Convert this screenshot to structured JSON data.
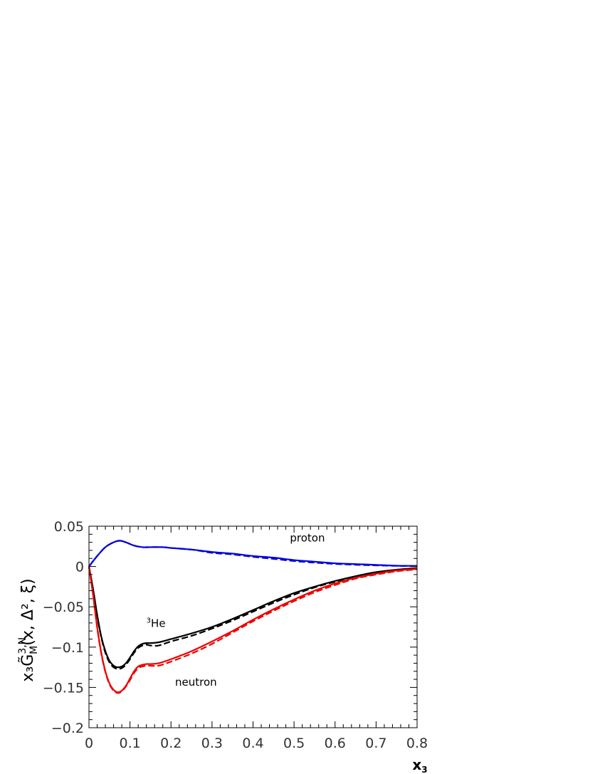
{
  "chart_data": {
    "type": "line",
    "title": "",
    "xlabel_main": "x",
    "xlabel_sub": "3",
    "ylabel_text": "x₃G̃",
    "ylabel_sup": "3,N",
    "ylabel_sub": "M",
    "ylabel_args": "(x, Δ², ξ)",
    "xlim": [
      0,
      0.8
    ],
    "ylim": [
      -0.2,
      0.05
    ],
    "x_ticks": [
      0,
      0.1,
      0.2,
      0.3,
      0.4,
      0.5,
      0.6,
      0.7,
      0.8
    ],
    "x_tick_labels": [
      "0",
      "0.1",
      "0.2",
      "0.3",
      "0.4",
      "0.5",
      "0.6",
      "0.7",
      "0.8"
    ],
    "y_ticks": [
      0.05,
      0,
      -0.05,
      -0.1,
      -0.15,
      -0.2
    ],
    "y_tick_labels": [
      "0.05",
      "0",
      "−0.05",
      "−0.1",
      "−0.15",
      "−0.2"
    ],
    "grid": false,
    "annotations": [
      {
        "text": "proton",
        "x": 0.49,
        "y": 0.031
      },
      {
        "text": "He",
        "sup": "3",
        "x": 0.14,
        "y": -0.075
      },
      {
        "text": "neutron",
        "x": 0.21,
        "y": -0.148
      }
    ],
    "series": [
      {
        "color": "#0000dd",
        "dashed": false,
        "x": [
          0,
          0.02,
          0.04,
          0.06,
          0.075,
          0.09,
          0.11,
          0.13,
          0.15,
          0.18,
          0.2,
          0.25,
          0.3,
          0.35,
          0.4,
          0.45,
          0.5,
          0.55,
          0.6,
          0.65,
          0.7,
          0.75,
          0.8
        ],
        "y": [
          0,
          0.013,
          0.024,
          0.03,
          0.032,
          0.03,
          0.026,
          0.024,
          0.024,
          0.024,
          0.023,
          0.021,
          0.018,
          0.016,
          0.013,
          0.011,
          0.008,
          0.006,
          0.004,
          0.003,
          0.002,
          0.001,
          0.0008
        ]
      },
      {
        "color": "#0000dd",
        "dashed": true,
        "x": [
          0,
          0.02,
          0.04,
          0.06,
          0.075,
          0.09,
          0.11,
          0.13,
          0.15,
          0.18,
          0.2,
          0.25,
          0.3,
          0.35,
          0.4,
          0.45,
          0.5,
          0.55,
          0.6,
          0.65,
          0.7,
          0.75,
          0.8
        ],
        "y": [
          0,
          0.013,
          0.024,
          0.03,
          0.032,
          0.03,
          0.026,
          0.024,
          0.024,
          0.024,
          0.023,
          0.021,
          0.017,
          0.015,
          0.012,
          0.0095,
          0.0068,
          0.0048,
          0.0032,
          0.0022,
          0.0014,
          0.0008,
          0.0005
        ]
      },
      {
        "color": "#000000",
        "dashed": false,
        "x": [
          0,
          0.01,
          0.02,
          0.03,
          0.04,
          0.05,
          0.06,
          0.07,
          0.08,
          0.09,
          0.1,
          0.11,
          0.12,
          0.13,
          0.14,
          0.15,
          0.17,
          0.2,
          0.25,
          0.3,
          0.35,
          0.4,
          0.45,
          0.5,
          0.55,
          0.6,
          0.65,
          0.7,
          0.75,
          0.8
        ],
        "y": [
          0,
          -0.028,
          -0.06,
          -0.087,
          -0.105,
          -0.117,
          -0.123,
          -0.125,
          -0.124,
          -0.12,
          -0.113,
          -0.105,
          -0.099,
          -0.096,
          -0.095,
          -0.095,
          -0.094,
          -0.09,
          -0.083,
          -0.075,
          -0.065,
          -0.054,
          -0.043,
          -0.033,
          -0.025,
          -0.018,
          -0.012,
          -0.007,
          -0.004,
          -0.002
        ]
      },
      {
        "color": "#000000",
        "dashed": true,
        "x": [
          0,
          0.01,
          0.02,
          0.03,
          0.04,
          0.05,
          0.06,
          0.07,
          0.08,
          0.09,
          0.1,
          0.11,
          0.12,
          0.13,
          0.14,
          0.15,
          0.17,
          0.2,
          0.25,
          0.3,
          0.35,
          0.4,
          0.45,
          0.5,
          0.55,
          0.6,
          0.65,
          0.7,
          0.75,
          0.8
        ],
        "y": [
          0,
          -0.028,
          -0.061,
          -0.088,
          -0.107,
          -0.119,
          -0.125,
          -0.127,
          -0.126,
          -0.122,
          -0.115,
          -0.107,
          -0.101,
          -0.098,
          -0.097,
          -0.098,
          -0.098,
          -0.093,
          -0.086,
          -0.077,
          -0.067,
          -0.056,
          -0.045,
          -0.035,
          -0.026,
          -0.019,
          -0.013,
          -0.008,
          -0.0045,
          -0.0025
        ]
      },
      {
        "color": "#ee0000",
        "dashed": false,
        "x": [
          0,
          0.01,
          0.02,
          0.03,
          0.04,
          0.05,
          0.06,
          0.07,
          0.08,
          0.09,
          0.1,
          0.11,
          0.12,
          0.13,
          0.14,
          0.15,
          0.17,
          0.2,
          0.25,
          0.3,
          0.35,
          0.4,
          0.45,
          0.5,
          0.55,
          0.6,
          0.65,
          0.7,
          0.75,
          0.8
        ],
        "y": [
          0,
          -0.035,
          -0.075,
          -0.107,
          -0.13,
          -0.145,
          -0.153,
          -0.156,
          -0.154,
          -0.148,
          -0.139,
          -0.13,
          -0.124,
          -0.122,
          -0.121,
          -0.121,
          -0.12,
          -0.115,
          -0.105,
          -0.093,
          -0.08,
          -0.066,
          -0.053,
          -0.041,
          -0.03,
          -0.021,
          -0.014,
          -0.009,
          -0.005,
          -0.003
        ]
      },
      {
        "color": "#ee0000",
        "dashed": true,
        "x": [
          0,
          0.01,
          0.02,
          0.03,
          0.04,
          0.05,
          0.06,
          0.07,
          0.08,
          0.09,
          0.1,
          0.11,
          0.12,
          0.13,
          0.14,
          0.15,
          0.17,
          0.2,
          0.25,
          0.3,
          0.35,
          0.4,
          0.45,
          0.5,
          0.55,
          0.6,
          0.65,
          0.7,
          0.75,
          0.8
        ],
        "y": [
          0,
          -0.035,
          -0.076,
          -0.108,
          -0.131,
          -0.146,
          -0.154,
          -0.157,
          -0.155,
          -0.149,
          -0.141,
          -0.132,
          -0.126,
          -0.124,
          -0.123,
          -0.123,
          -0.123,
          -0.118,
          -0.108,
          -0.096,
          -0.082,
          -0.068,
          -0.055,
          -0.043,
          -0.032,
          -0.023,
          -0.015,
          -0.01,
          -0.006,
          -0.0035
        ]
      }
    ]
  }
}
